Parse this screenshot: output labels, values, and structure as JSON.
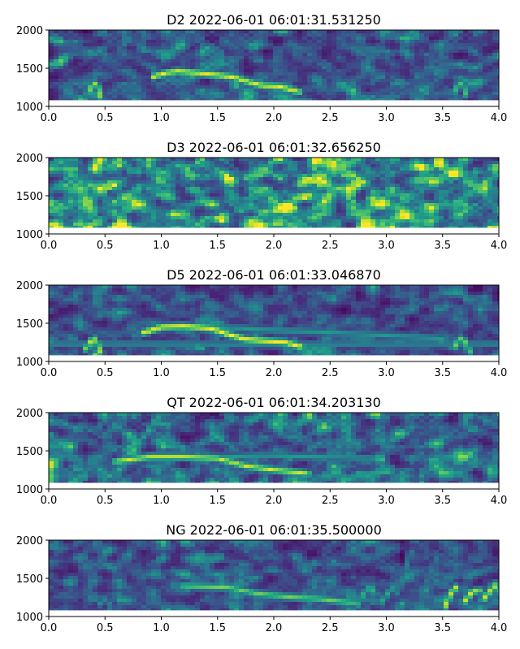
{
  "chart_data": [
    {
      "type": "heatmap",
      "title": "D2 2022-06-01 06:01:31.531250",
      "xlabel": "",
      "ylabel": "",
      "xlim": [
        0,
        4
      ],
      "ylim": [
        1000,
        2000
      ],
      "xticks": [
        "0.0",
        "0.5",
        "1.0",
        "1.5",
        "2.0",
        "2.5",
        "3.0",
        "3.5",
        "4.0"
      ],
      "yticks": [
        "1000",
        "1500",
        "2000"
      ],
      "noise_level": 0.35,
      "calls": [
        {
          "points": [
            [
              0.93,
              1390
            ],
            [
              1.05,
              1440
            ],
            [
              1.15,
              1460
            ],
            [
              1.3,
              1440
            ],
            [
              1.5,
              1410
            ],
            [
              1.65,
              1380
            ],
            [
              1.75,
              1330
            ],
            [
              1.9,
              1270
            ],
            [
              2.05,
              1260
            ],
            [
              2.22,
              1190
            ]
          ],
          "intensity": 0.9
        },
        {
          "points": [
            [
              0.35,
              1180
            ],
            [
              0.38,
              1260
            ],
            [
              0.41,
              1300
            ],
            [
              0.44,
              1240
            ],
            [
              0.46,
              1120
            ]
          ],
          "intensity": 0.75
        },
        {
          "points": [
            [
              3.6,
              1180
            ],
            [
              3.63,
              1260
            ],
            [
              3.66,
              1300
            ],
            [
              3.69,
              1240
            ],
            [
              3.71,
              1150
            ]
          ],
          "intensity": 0.6
        }
      ]
    },
    {
      "type": "heatmap",
      "title": "D3 2022-06-01 06:01:32.656250",
      "xlabel": "",
      "ylabel": "",
      "xlim": [
        0,
        4
      ],
      "ylim": [
        1000,
        2000
      ],
      "xticks": [
        "0.0",
        "0.5",
        "1.0",
        "1.5",
        "2.0",
        "2.5",
        "3.0",
        "3.5",
        "4.0"
      ],
      "yticks": [
        "1000",
        "1500",
        "2000"
      ],
      "noise_level": 0.62,
      "calls": []
    },
    {
      "type": "heatmap",
      "title": "D5 2022-06-01 06:01:33.046870",
      "xlabel": "",
      "ylabel": "",
      "xlim": [
        0,
        4
      ],
      "ylim": [
        1000,
        2000
      ],
      "xticks": [
        "0.0",
        "0.5",
        "1.0",
        "1.5",
        "2.0",
        "2.5",
        "3.0",
        "3.5",
        "4.0"
      ],
      "yticks": [
        "1000",
        "1500",
        "2000"
      ],
      "noise_level": 0.3,
      "calls": [
        {
          "points": [
            [
              0.85,
              1380
            ],
            [
              1.0,
              1450
            ],
            [
              1.2,
              1460
            ],
            [
              1.45,
              1430
            ],
            [
              1.6,
              1350
            ],
            [
              1.75,
              1290
            ],
            [
              1.9,
              1270
            ],
            [
              2.1,
              1250
            ],
            [
              2.25,
              1190
            ]
          ],
          "intensity": 0.95
        },
        {
          "points": [
            [
              1.2,
              1460
            ],
            [
              1.6,
              1440
            ],
            [
              2.0,
              1410
            ],
            [
              2.5,
              1380
            ],
            [
              3.0,
              1340
            ],
            [
              3.5,
              1300
            ]
          ],
          "intensity": 0.45
        },
        {
          "points": [
            [
              0.0,
              1230
            ],
            [
              1.0,
              1230
            ],
            [
              2.0,
              1220
            ],
            [
              3.0,
              1230
            ],
            [
              4.0,
              1230
            ]
          ],
          "intensity": 0.4
        },
        {
          "points": [
            [
              0.33,
              1160
            ],
            [
              0.37,
              1260
            ],
            [
              0.4,
              1300
            ],
            [
              0.43,
              1240
            ],
            [
              0.46,
              1120
            ]
          ],
          "intensity": 0.8
        },
        {
          "points": [
            [
              3.6,
              1180
            ],
            [
              3.64,
              1270
            ],
            [
              3.67,
              1300
            ],
            [
              3.71,
              1240
            ],
            [
              3.74,
              1120
            ]
          ],
          "intensity": 0.7
        }
      ]
    },
    {
      "type": "heatmap",
      "title": "QT 2022-06-01 06:01:34.203130",
      "xlabel": "",
      "ylabel": "",
      "xlim": [
        0,
        4
      ],
      "ylim": [
        1000,
        2000
      ],
      "xticks": [
        "0.0",
        "0.5",
        "1.0",
        "1.5",
        "2.0",
        "2.5",
        "3.0",
        "3.5",
        "4.0"
      ],
      "yticks": [
        "1000",
        "1500",
        "2000"
      ],
      "noise_level": 0.4,
      "calls": [
        {
          "points": [
            [
              0.6,
              1360
            ],
            [
              0.9,
              1420
            ],
            [
              1.2,
              1420
            ],
            [
              1.5,
              1400
            ],
            [
              1.75,
              1300
            ],
            [
              2.0,
              1250
            ],
            [
              2.3,
              1200
            ]
          ],
          "intensity": 0.85
        },
        {
          "points": [
            [
              1.4,
              1410
            ],
            [
              1.9,
              1440
            ],
            [
              2.4,
              1420
            ],
            [
              2.9,
              1400
            ]
          ],
          "intensity": 0.45
        },
        {
          "points": [
            [
              0.22,
              1300
            ],
            [
              0.25,
              1250
            ],
            [
              0.3,
              1280
            ],
            [
              0.32,
              1150
            ]
          ],
          "intensity": 0.5
        },
        {
          "points": [
            [
              0.65,
              1350
            ],
            [
              0.72,
              1550
            ],
            [
              0.78,
              1700
            ]
          ],
          "intensity": 0.4
        },
        {
          "points": [
            [
              0.85,
              1680
            ],
            [
              0.92,
              1850
            ],
            [
              0.98,
              1960
            ]
          ],
          "intensity": 0.5
        },
        {
          "points": [
            [
              0.45,
              1820
            ],
            [
              0.52,
              1940
            ]
          ],
          "intensity": 0.35
        },
        {
          "points": [
            [
              3.45,
              1200
            ],
            [
              3.5,
              1280
            ],
            [
              3.55,
              1280
            ],
            [
              3.6,
              1200
            ]
          ],
          "intensity": 0.45
        }
      ]
    },
    {
      "type": "heatmap",
      "title": "NG 2022-06-01 06:01:35.500000",
      "xlabel": "",
      "ylabel": "",
      "xlim": [
        0,
        4
      ],
      "ylim": [
        1000,
        2000
      ],
      "xticks": [
        "0.0",
        "0.5",
        "1.0",
        "1.5",
        "2.0",
        "2.5",
        "3.0",
        "3.5",
        "4.0"
      ],
      "yticks": [
        "1000",
        "1500",
        "2000"
      ],
      "noise_level": 0.32,
      "calls": [
        {
          "points": [
            [
              1.2,
              1400
            ],
            [
              1.6,
              1380
            ],
            [
              1.85,
              1300
            ],
            [
              2.1,
              1260
            ],
            [
              2.4,
              1230
            ],
            [
              2.7,
              1180
            ]
          ],
          "intensity": 0.7
        },
        {
          "points": [
            [
              0.45,
              1160
            ],
            [
              0.5,
              1230
            ],
            [
              0.54,
              1150
            ]
          ],
          "intensity": 0.4
        },
        {
          "points": [
            [
              2.75,
              1150
            ],
            [
              2.8,
              1300
            ],
            [
              2.86,
              1400
            ],
            [
              2.9,
              1300
            ]
          ],
          "intensity": 0.55
        },
        {
          "points": [
            [
              2.95,
              1170
            ],
            [
              3.02,
              1320
            ],
            [
              3.08,
              1400
            ]
          ],
          "intensity": 0.5
        },
        {
          "points": [
            [
              3.1,
              1300
            ],
            [
              3.16,
              1550
            ],
            [
              3.22,
              1850
            ]
          ],
          "intensity": 0.35
        },
        {
          "points": [
            [
              3.3,
              1300
            ],
            [
              3.38,
              1520
            ],
            [
              3.45,
              1780
            ]
          ],
          "intensity": 0.3
        },
        {
          "points": [
            [
              3.52,
              1120
            ],
            [
              3.57,
              1300
            ],
            [
              3.62,
              1380
            ]
          ],
          "intensity": 0.85
        },
        {
          "points": [
            [
              3.7,
              1200
            ],
            [
              3.76,
              1320
            ],
            [
              3.82,
              1340
            ]
          ],
          "intensity": 0.85
        },
        {
          "points": [
            [
              3.86,
              1220
            ],
            [
              3.92,
              1330
            ],
            [
              3.98,
              1420
            ]
          ],
          "intensity": 0.85
        }
      ]
    }
  ]
}
